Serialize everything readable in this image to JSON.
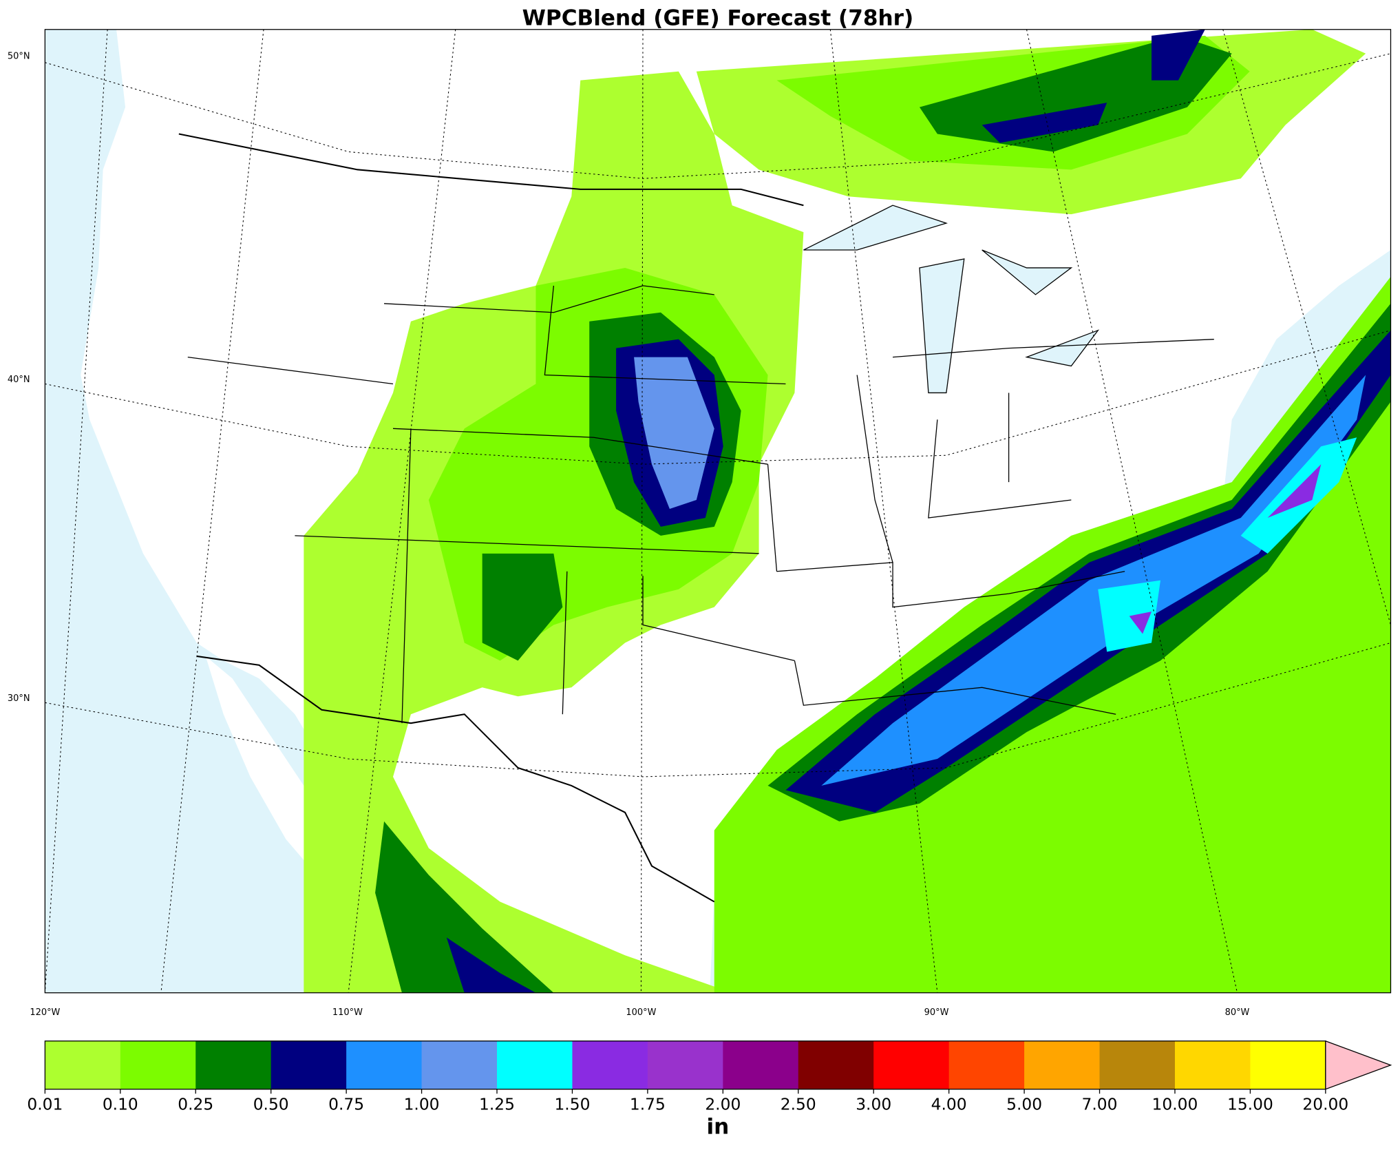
{
  "title": "WPCBlend (GFE) Forecast (78hr)",
  "map": {
    "lat_labels": [
      "50°N",
      "40°N",
      "30°N"
    ],
    "lon_labels": [
      "120°W",
      "110°W",
      "100°W",
      "90°W",
      "80°W"
    ]
  },
  "colorbar": {
    "label": "in",
    "levels": [
      {
        "value": 0.01,
        "label": "0.01"
      },
      {
        "value": 0.1,
        "label": "0.10"
      },
      {
        "value": 0.25,
        "label": "0.25"
      },
      {
        "value": 0.5,
        "label": "0.50"
      },
      {
        "value": 0.75,
        "label": "0.75"
      },
      {
        "value": 1,
        "label": "1.00"
      },
      {
        "value": 1.25,
        "label": "1.25"
      },
      {
        "value": 1.5,
        "label": "1.50"
      },
      {
        "value": 1.75,
        "label": "1.75"
      },
      {
        "value": 2,
        "label": "2.00"
      },
      {
        "value": 2.5,
        "label": "2.50"
      },
      {
        "value": 3,
        "label": "3.00"
      },
      {
        "value": 4,
        "label": "4.00"
      },
      {
        "value": 5,
        "label": "5.00"
      },
      {
        "value": 7,
        "label": "7.00"
      },
      {
        "value": 10,
        "label": "10.00"
      },
      {
        "value": 15,
        "label": "15.00"
      },
      {
        "value": 20,
        "label": "20.00"
      }
    ],
    "colors": [
      "#adff2f",
      "#7cfc00",
      "#008000",
      "#000080",
      "#1e90ff",
      "#6495ed",
      "#00ffff",
      "#8a2be2",
      "#9932cc",
      "#8b008b",
      "#800000",
      "#ff0000",
      "#ff4500",
      "#ffa500",
      "#b8860b",
      "#ffd700",
      "#ffff00"
    ],
    "extend_color": "#ffc0cb"
  }
}
